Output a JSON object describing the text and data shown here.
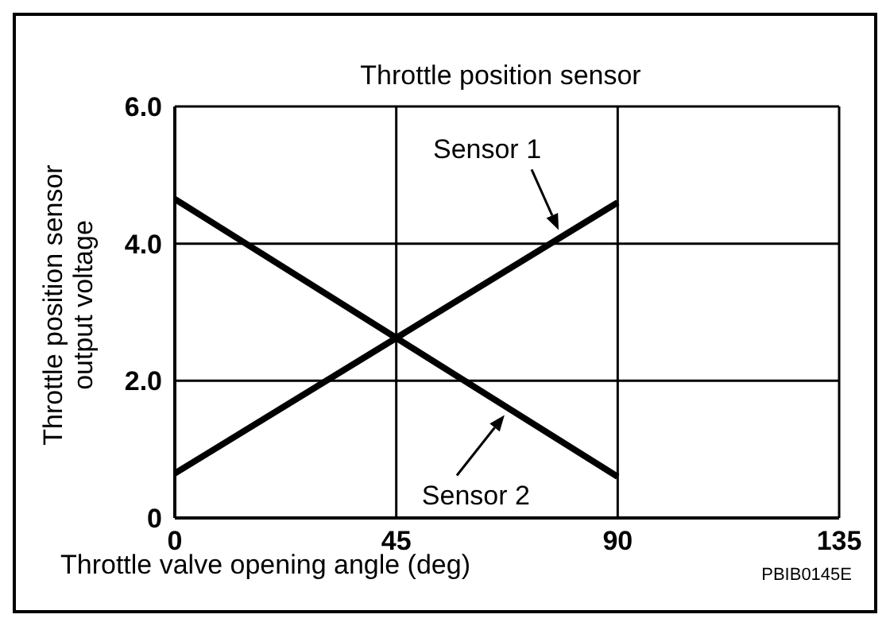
{
  "chart_data": {
    "type": "line",
    "title": "Throttle position sensor",
    "xlabel": "Throttle valve opening angle (deg)",
    "ylabel": "Throttle position sensor\noutput voltage",
    "x": [
      0,
      90
    ],
    "series": [
      {
        "color": "#000000",
        "values": [
          0.65,
          4.6
        ]
      },
      {
        "color": "#000000",
        "values": [
          4.65,
          0.6
        ]
      }
    ],
    "xlim": [
      0,
      135
    ],
    "xticks": [
      0,
      45,
      90,
      135
    ],
    "ylim": [
      0,
      6
    ],
    "yticks": [
      0,
      {
        "value": 2,
        "label": "2.0"
      },
      {
        "value": 4,
        "label": "4.0"
      },
      {
        "value": 6,
        "label": "6.0"
      }
    ],
    "grid": true,
    "marker": "none",
    "line_style": "solid",
    "annotations": [
      {
        "text": "Sensor 1",
        "x": 78,
        "y": 4.2
      },
      {
        "text": "Sensor 2",
        "x": 67,
        "y": 1.5
      },
      "PBIB0145E"
    ]
  }
}
